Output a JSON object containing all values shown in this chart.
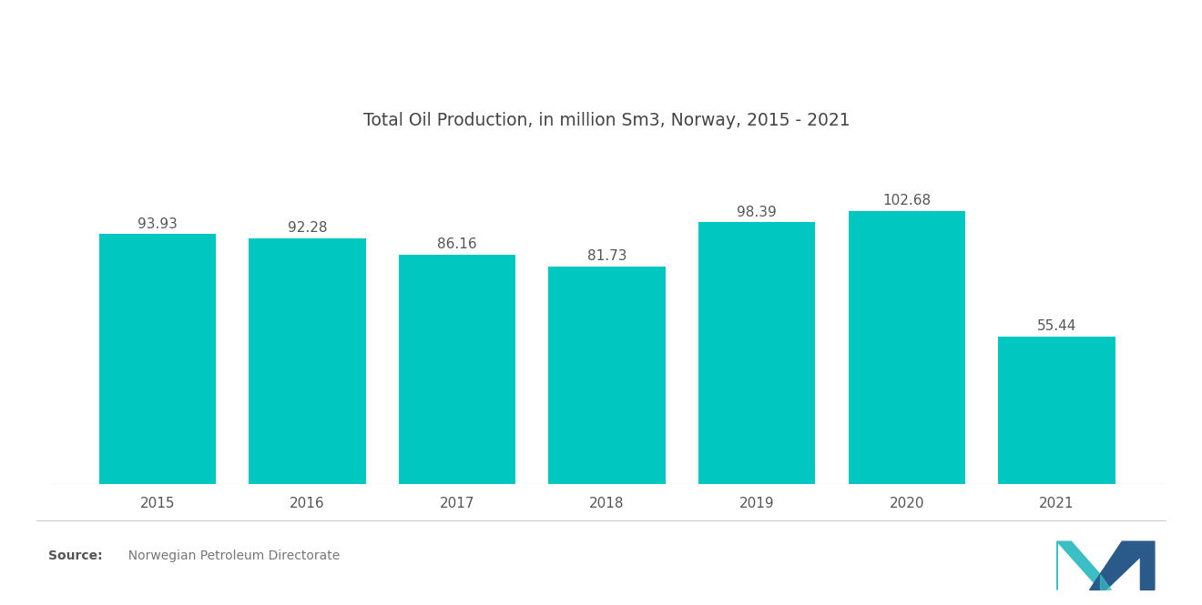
{
  "title": "Total Oil Production, in million Sm3, Norway, 2015 - 2021",
  "years": [
    "2015",
    "2016",
    "2017",
    "2018",
    "2019",
    "2020",
    "2021"
  ],
  "values": [
    93.93,
    92.28,
    86.16,
    81.73,
    98.39,
    102.68,
    55.44
  ],
  "bar_color": "#00C8C0",
  "background_color": "#ffffff",
  "title_fontsize": 13.5,
  "label_fontsize": 11,
  "value_fontsize": 11,
  "source_bold": "Source:",
  "source_text": "  Norwegian Petroleum Directorate",
  "ylim": [
    0,
    125
  ],
  "bar_width": 0.78
}
